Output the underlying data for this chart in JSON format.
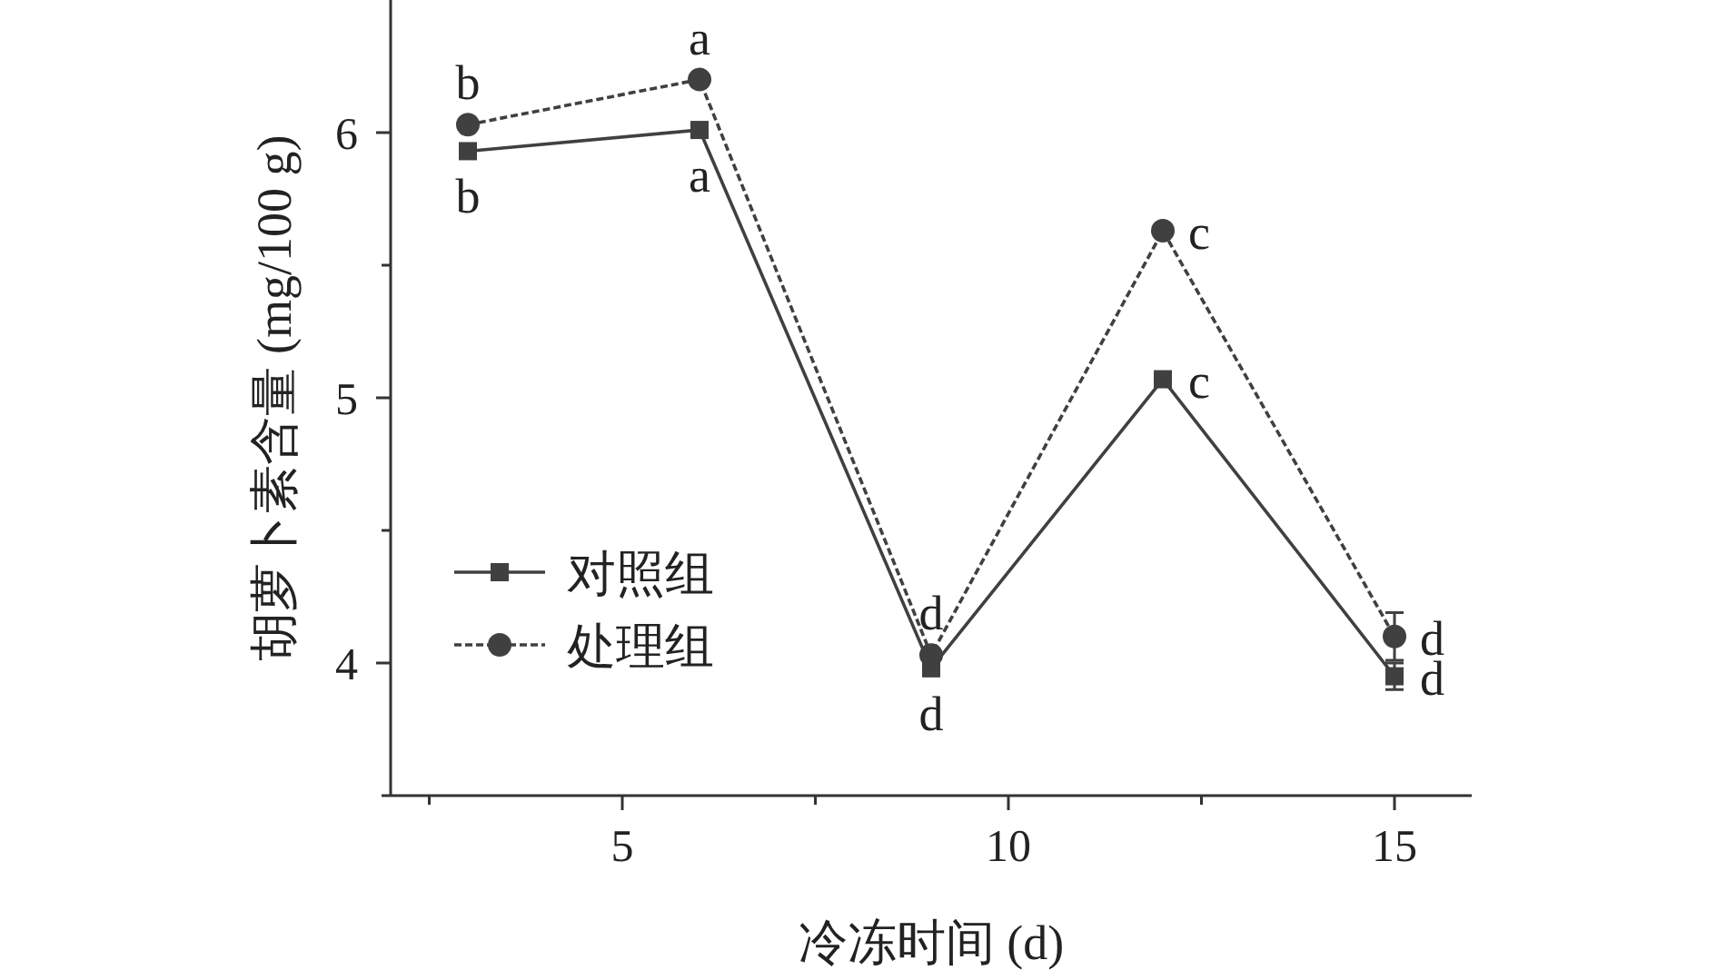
{
  "chart_data": {
    "type": "line",
    "xlabel": "冷冻时间 (d)",
    "ylabel": "胡萝卜素含量 (mg/100 g)",
    "x": [
      3,
      6,
      9,
      12,
      15
    ],
    "xlim": [
      2,
      16
    ],
    "xticks": [
      {
        "value": 2.5,
        "label": null
      },
      5,
      {
        "value": 7.5,
        "label": null
      },
      10,
      {
        "value": 12.5,
        "label": null
      },
      15
    ],
    "ylim": [
      3.5,
      6.5
    ],
    "yticks": [
      {
        "value": 3.5,
        "label": null
      },
      4,
      {
        "value": 4.5,
        "label": null
      },
      5,
      {
        "value": 5.5,
        "label": null
      },
      6
    ],
    "series": [
      {
        "name": "对照组",
        "color": "#404040",
        "marker": "square",
        "line_style": "solid",
        "values": [
          5.93,
          6.01,
          3.98,
          5.07,
          3.95
        ],
        "errors": [
          null,
          null,
          null,
          null,
          0.05
        ]
      },
      {
        "name": "处理组",
        "color": "#404040",
        "marker": "circle",
        "line_style": "dashed",
        "values": [
          6.03,
          6.2,
          4.03,
          5.63,
          4.1
        ],
        "errors": [
          null,
          null,
          null,
          null,
          0.09
        ]
      }
    ],
    "annotations": [
      {
        "text": "b",
        "x": 3,
        "y": 5.93
      },
      {
        "text": "a",
        "x": 6,
        "y": 6.01
      },
      {
        "text": "d",
        "x": 9,
        "y": 3.98
      },
      {
        "text": "c",
        "x": 12,
        "y": 5.07
      },
      {
        "text": "d",
        "x": 15,
        "y": 3.95
      },
      {
        "text": "b",
        "x": 3,
        "y": 6.03
      },
      {
        "text": "a",
        "x": 6,
        "y": 6.2
      },
      {
        "text": "d",
        "x": 9,
        "y": 4.03
      },
      {
        "text": "c",
        "x": 12,
        "y": 5.63
      },
      {
        "text": "d",
        "x": 15,
        "y": 4.1
      }
    ],
    "legend": "left",
    "grid": false
  }
}
